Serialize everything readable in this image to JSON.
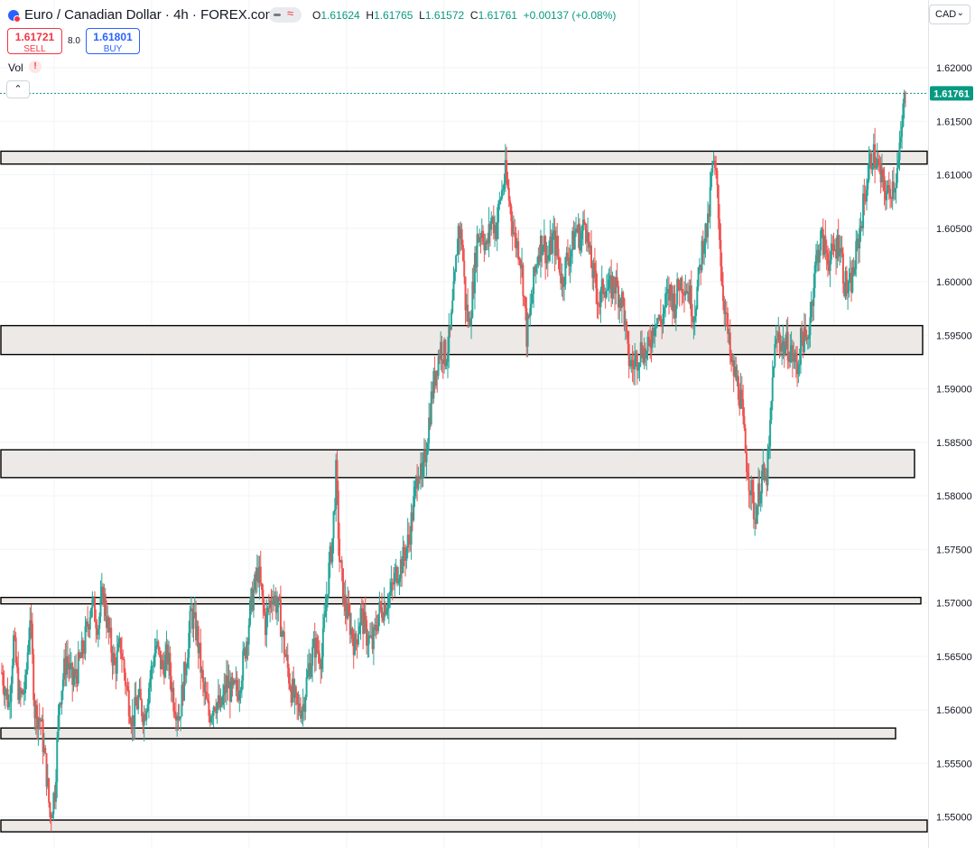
{
  "header": {
    "symbol_title": "Euro / Canadian Dollar · 4h · FOREX.com",
    "ohlc": {
      "o_label": "O",
      "o": "1.61624",
      "h_label": "H",
      "h": "1.61765",
      "l_label": "L",
      "l": "1.61572",
      "c_label": "C",
      "c": "1.61761",
      "change": "+0.00137 (+0.08%)"
    },
    "sell": {
      "price": "1.61721",
      "label": "SELL"
    },
    "buy": {
      "price": "1.61801",
      "label": "BUY"
    },
    "spread": "8.0",
    "vol_label": "Vol",
    "vol_warning": "!",
    "collapse_glyph": "⌃",
    "currency": "CAD",
    "currency_glyph": "⌄"
  },
  "colors": {
    "up": "#26a69a",
    "down": "#ef5350",
    "zone_fill": "#ede9e6",
    "zone_stroke": "#000000",
    "last_price_bg": "#089981"
  },
  "icons": {
    "symbol": "currency-pair-flag-icon",
    "collapse": "chevron-up-icon"
  },
  "chart_data": {
    "type": "candlestick",
    "timeframe": "4h",
    "ylim": [
      1.5485,
      1.6245
    ],
    "y_ticks": [
      "1.62000",
      "1.61500",
      "1.61000",
      "1.60500",
      "1.60000",
      "1.59500",
      "1.59000",
      "1.58500",
      "1.58000",
      "1.57500",
      "1.57000",
      "1.56500",
      "1.56000",
      "1.55500",
      "1.55000"
    ],
    "last_price": 1.61761,
    "last_price_label": "1.61761",
    "zones": [
      {
        "top": 1.6122,
        "bottom": 1.611
      },
      {
        "top": 1.5959,
        "bottom": 1.5932
      },
      {
        "top": 1.5843,
        "bottom": 1.5817
      },
      {
        "top": 1.5705,
        "bottom": 1.5699
      },
      {
        "top": 1.5583,
        "bottom": 1.5573
      },
      {
        "top": 1.5497,
        "bottom": 1.5486
      }
    ],
    "path": [
      [
        0,
        1.5635
      ],
      [
        6,
        1.5605
      ],
      [
        10,
        1.5665
      ],
      [
        15,
        1.561
      ],
      [
        20,
        1.562
      ],
      [
        24,
        1.569
      ],
      [
        28,
        1.56
      ],
      [
        33,
        1.559
      ],
      [
        38,
        1.554
      ],
      [
        41,
        1.55
      ],
      [
        45,
        1.5525
      ],
      [
        49,
        1.561
      ],
      [
        55,
        1.565
      ],
      [
        60,
        1.5625
      ],
      [
        65,
        1.564
      ],
      [
        70,
        1.566
      ],
      [
        76,
        1.57
      ],
      [
        82,
        1.568
      ],
      [
        86,
        1.571
      ],
      [
        91,
        1.567
      ],
      [
        96,
        1.564
      ],
      [
        101,
        1.566
      ],
      [
        106,
        1.562
      ],
      [
        111,
        1.559
      ],
      [
        116,
        1.561
      ],
      [
        121,
        1.5595
      ],
      [
        126,
        1.563
      ],
      [
        131,
        1.566
      ],
      [
        136,
        1.564
      ],
      [
        141,
        1.565
      ],
      [
        146,
        1.561
      ],
      [
        151,
        1.5595
      ],
      [
        156,
        1.564
      ],
      [
        161,
        1.569
      ],
      [
        166,
        1.567
      ],
      [
        171,
        1.562
      ],
      [
        176,
        1.5595
      ],
      [
        181,
        1.561
      ],
      [
        186,
        1.56
      ],
      [
        191,
        1.5625
      ],
      [
        196,
        1.5615
      ],
      [
        201,
        1.562
      ],
      [
        206,
        1.565
      ],
      [
        212,
        1.57
      ],
      [
        218,
        1.573
      ],
      [
        224,
        1.568
      ],
      [
        230,
        1.571
      ],
      [
        236,
        1.569
      ],
      [
        241,
        1.565
      ],
      [
        246,
        1.562
      ],
      [
        251,
        1.56
      ],
      [
        256,
        1.5605
      ],
      [
        261,
        1.564
      ],
      [
        266,
        1.566
      ],
      [
        272,
        1.565
      ],
      [
        277,
        1.572
      ],
      [
        281,
        1.576
      ],
      [
        284,
        1.582
      ],
      [
        287,
        1.574
      ],
      [
        291,
        1.57
      ],
      [
        296,
        1.568
      ],
      [
        300,
        1.566
      ],
      [
        305,
        1.569
      ],
      [
        310,
        1.567
      ],
      [
        315,
        1.566
      ],
      [
        320,
        1.569
      ],
      [
        326,
        1.57
      ],
      [
        331,
        1.571
      ],
      [
        336,
        1.573
      ],
      [
        341,
        1.574
      ],
      [
        346,
        1.576
      ],
      [
        351,
        1.58
      ],
      [
        354,
        1.583
      ],
      [
        357,
        1.581
      ],
      [
        361,
        1.585
      ],
      [
        365,
        1.589
      ],
      [
        369,
        1.592
      ],
      [
        373,
        1.594
      ],
      [
        377,
        1.593
      ],
      [
        381,
        1.595
      ],
      [
        385,
        1.6
      ],
      [
        388,
        1.605
      ],
      [
        391,
        1.604
      ],
      [
        394,
        1.598
      ],
      [
        397,
        1.596
      ],
      [
        400,
        1.599
      ],
      [
        404,
        1.604
      ],
      [
        408,
        1.605
      ],
      [
        412,
        1.603
      ],
      [
        416,
        1.606
      ],
      [
        420,
        1.605
      ],
      [
        424,
        1.608
      ],
      [
        428,
        1.61
      ],
      [
        432,
        1.607
      ],
      [
        436,
        1.604
      ],
      [
        440,
        1.603
      ],
      [
        443,
        1.6
      ],
      [
        446,
        1.595
      ],
      [
        449,
        1.597
      ],
      [
        452,
        1.6
      ],
      [
        456,
        1.603
      ],
      [
        460,
        1.604
      ],
      [
        464,
        1.602
      ],
      [
        468,
        1.604
      ],
      [
        472,
        1.603
      ],
      [
        476,
        1.6
      ],
      [
        480,
        1.602
      ],
      [
        484,
        1.603
      ],
      [
        488,
        1.605
      ],
      [
        492,
        1.604
      ],
      [
        496,
        1.606
      ],
      [
        500,
        1.602
      ],
      [
        504,
        1.6
      ],
      [
        508,
        1.598
      ],
      [
        512,
        1.6
      ],
      [
        516,
        1.599
      ],
      [
        520,
        1.6
      ],
      [
        524,
        1.599
      ],
      [
        528,
        1.598
      ],
      [
        532,
        1.593
      ],
      [
        536,
        1.592
      ],
      [
        540,
        1.593
      ],
      [
        544,
        1.594
      ],
      [
        548,
        1.593
      ],
      [
        552,
        1.595
      ],
      [
        556,
        1.597
      ],
      [
        560,
        1.596
      ],
      [
        564,
        1.598
      ],
      [
        568,
        1.599
      ],
      [
        572,
        1.598
      ],
      [
        576,
        1.6
      ],
      [
        580,
        1.6
      ],
      [
        584,
        1.599
      ],
      [
        588,
        1.597
      ],
      [
        592,
        1.6
      ],
      [
        596,
        1.604
      ],
      [
        600,
        1.605
      ],
      [
        604,
        1.611
      ],
      [
        608,
        1.609
      ],
      [
        612,
        1.6
      ],
      [
        616,
        1.596
      ],
      [
        620,
        1.592
      ],
      [
        624,
        1.591
      ],
      [
        628,
        1.589
      ],
      [
        632,
        1.584
      ],
      [
        636,
        1.581
      ],
      [
        640,
        1.578
      ],
      [
        643,
        1.58
      ],
      [
        646,
        1.582
      ],
      [
        649,
        1.581
      ],
      [
        652,
        1.584
      ],
      [
        656,
        1.593
      ],
      [
        660,
        1.595
      ],
      [
        664,
        1.594
      ],
      [
        668,
        1.594
      ],
      [
        672,
        1.593
      ],
      [
        676,
        1.592
      ],
      [
        680,
        1.595
      ],
      [
        684,
        1.594
      ],
      [
        688,
        1.598
      ],
      [
        692,
        1.602
      ],
      [
        696,
        1.604
      ],
      [
        700,
        1.603
      ],
      [
        704,
        1.602
      ],
      [
        708,
        1.603
      ],
      [
        712,
        1.604
      ],
      [
        716,
        1.6
      ],
      [
        720,
        1.599
      ],
      [
        724,
        1.601
      ],
      [
        728,
        1.604
      ],
      [
        732,
        1.607
      ],
      [
        736,
        1.61
      ],
      [
        740,
        1.612
      ],
      [
        744,
        1.611
      ],
      [
        747,
        1.6095
      ],
      [
        750,
        1.6088
      ],
      [
        753,
        1.608
      ],
      [
        756,
        1.609
      ],
      [
        759,
        1.6095
      ],
      [
        762,
        1.611
      ],
      [
        764,
        1.613
      ],
      [
        766,
        1.616
      ],
      [
        768,
        1.61761
      ]
    ]
  }
}
